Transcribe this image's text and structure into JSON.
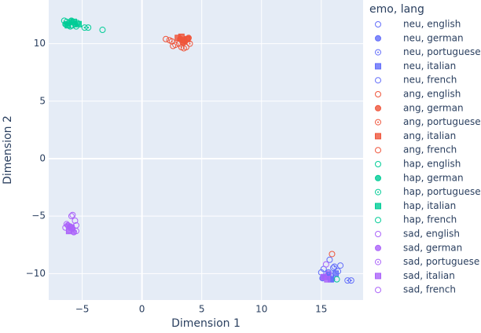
{
  "chart_data": {
    "type": "scatter",
    "x_label": "Dimension 1",
    "y_label": "Dimension 2",
    "legend_title": "emo, lang",
    "xlim": [
      -7.8,
      18.5
    ],
    "ylim": [
      -12.3,
      13.8
    ],
    "xticks": [
      {
        "value": -5,
        "label": "−5"
      },
      0,
      5,
      10,
      15
    ],
    "yticks": [
      {
        "value": -10,
        "label": "−10"
      },
      {
        "value": -5,
        "label": "−5"
      },
      0,
      5,
      10
    ],
    "grid": true,
    "legend": "right",
    "series": [
      {
        "name": "neu, english",
        "color": "#636efa",
        "symbol": "circle-open",
        "x": [
          15.2,
          15.6,
          16.0,
          16.4,
          15.8
        ],
        "y": [
          -9.6,
          -9.9,
          -9.5,
          -9.8,
          -10.2
        ]
      },
      {
        "name": "neu, german",
        "color": "#636efa",
        "symbol": "circle",
        "x": [
          15.1,
          15.5,
          15.9,
          15.3
        ],
        "y": [
          -10.4,
          -10.2,
          -10.5,
          -10.3
        ]
      },
      {
        "name": "neu, portuguese",
        "color": "#636efa",
        "symbol": "circle-open-dot",
        "x": [
          17.2,
          17.5,
          16.1
        ],
        "y": [
          -10.6,
          -10.6,
          -9.4
        ]
      },
      {
        "name": "neu, italian",
        "color": "#636efa",
        "symbol": "square",
        "x": [
          15.4,
          15.8,
          16.2,
          15.6
        ],
        "y": [
          -10.3,
          -10.5,
          -10.0,
          -10.1
        ]
      },
      {
        "name": "neu, french",
        "color": "#636efa",
        "symbol": "circle-open",
        "x": [
          15.0,
          15.7,
          16.6
        ],
        "y": [
          -9.9,
          -8.8,
          -9.3
        ]
      },
      {
        "name": "ang, english",
        "color": "#EF553B",
        "symbol": "circle-open",
        "x": [
          2.3,
          3.1,
          3.8,
          2.6,
          3.5
        ],
        "y": [
          10.3,
          10.0,
          10.4,
          9.8,
          9.6
        ]
      },
      {
        "name": "ang, german",
        "color": "#EF553B",
        "symbol": "circle",
        "x": [
          3.2,
          3.6,
          3.9,
          3.4
        ],
        "y": [
          10.4,
          10.2,
          10.5,
          10.1
        ]
      },
      {
        "name": "ang, portuguese",
        "color": "#EF553B",
        "symbol": "circle-open-dot",
        "x": [
          2.5,
          3.3,
          4.0
        ],
        "y": [
          10.2,
          9.7,
          10.0
        ]
      },
      {
        "name": "ang, italian",
        "color": "#EF553B",
        "symbol": "square",
        "x": [
          3.0,
          3.5,
          3.8,
          3.3
        ],
        "y": [
          10.5,
          10.3,
          10.4,
          10.6
        ]
      },
      {
        "name": "ang, french",
        "color": "#EF553B",
        "symbol": "circle-open",
        "x": [
          2.0,
          2.8,
          3.7,
          15.9
        ],
        "y": [
          10.4,
          9.9,
          9.7,
          -8.3
        ]
      },
      {
        "name": "hap, english",
        "color": "#00cc96",
        "symbol": "circle-open",
        "x": [
          -6.3,
          -5.8,
          -5.4,
          -3.3
        ],
        "y": [
          11.9,
          11.6,
          11.8,
          11.2
        ]
      },
      {
        "name": "hap, german",
        "color": "#00cc96",
        "symbol": "circle",
        "x": [
          -6.1,
          -5.9,
          -5.6,
          -6.4
        ],
        "y": [
          11.8,
          12.0,
          11.7,
          11.7
        ]
      },
      {
        "name": "hap, portuguese",
        "color": "#00cc96",
        "symbol": "circle-open-dot",
        "x": [
          -4.8,
          -4.5,
          -6.0
        ],
        "y": [
          11.4,
          11.4,
          11.5
        ]
      },
      {
        "name": "hap, italian",
        "color": "#00cc96",
        "symbol": "square",
        "x": [
          -6.2,
          -5.7,
          -5.3
        ],
        "y": [
          11.6,
          11.9,
          11.7
        ]
      },
      {
        "name": "hap, french",
        "color": "#00cc96",
        "symbol": "circle-open",
        "x": [
          -6.5,
          -5.5,
          16.3
        ],
        "y": [
          12.0,
          11.5,
          -10.5
        ]
      },
      {
        "name": "sad, english",
        "color": "#ab63fa",
        "symbol": "circle-open",
        "x": [
          -5.9,
          -5.6,
          -6.1,
          15.4
        ],
        "y": [
          -5.0,
          -5.4,
          -6.2,
          -9.2
        ]
      },
      {
        "name": "sad, german",
        "color": "#ab63fa",
        "symbol": "circle",
        "x": [
          -6.0,
          -5.8,
          -5.7,
          -6.2
        ],
        "y": [
          -5.9,
          -6.1,
          -6.4,
          -5.8
        ]
      },
      {
        "name": "sad, portuguese",
        "color": "#ab63fa",
        "symbol": "circle-open-dot",
        "x": [
          -6.3,
          -5.5,
          15.6
        ],
        "y": [
          -5.7,
          -6.3,
          -10.0
        ]
      },
      {
        "name": "sad, italian",
        "color": "#ab63fa",
        "symbol": "square",
        "x": [
          -5.9,
          -6.1,
          15.2,
          15.5
        ],
        "y": [
          -6.0,
          -6.3,
          -10.3,
          -10.5
        ]
      },
      {
        "name": "sad, french",
        "color": "#ab63fa",
        "symbol": "circle-open",
        "x": [
          -5.8,
          -6.4,
          -5.5
        ],
        "y": [
          -4.9,
          -6.0,
          -5.8
        ]
      }
    ]
  }
}
